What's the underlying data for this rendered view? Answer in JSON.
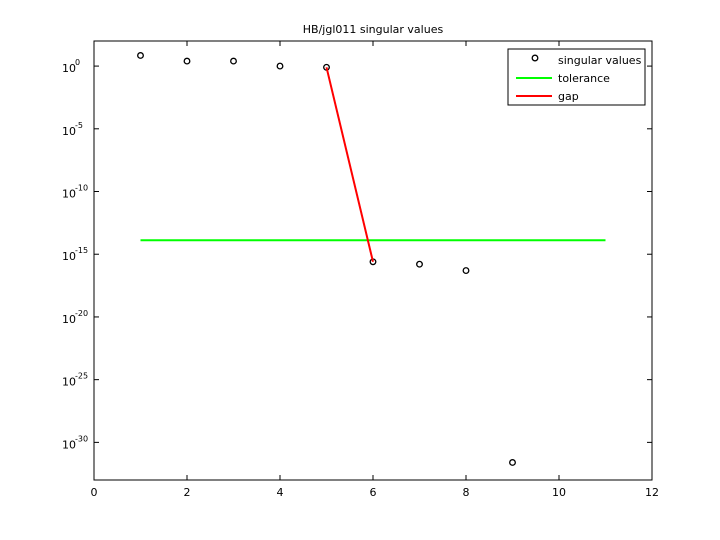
{
  "chart_data": {
    "type": "line",
    "title": "HB/jgl011 singular values",
    "xlim": [
      0,
      12
    ],
    "xticks": [
      0,
      2,
      4,
      6,
      8,
      10,
      12
    ],
    "ylim": [
      1e-33,
      100
    ],
    "log_y": true,
    "yticks": [
      {
        "value": 1,
        "label": "10",
        "exponent": "0"
      },
      {
        "value": 1e-05,
        "label": "10",
        "exponent": "-5"
      },
      {
        "value": 1e-10,
        "label": "10",
        "exponent": "-10"
      },
      {
        "value": 1e-15,
        "label": "10",
        "exponent": "-15"
      },
      {
        "value": 1e-20,
        "label": "10",
        "exponent": "-20"
      },
      {
        "value": 1e-25,
        "label": "10",
        "exponent": "-25"
      },
      {
        "value": 1e-30,
        "label": "10",
        "exponent": "-30"
      }
    ],
    "legend": "northeast",
    "series": [
      {
        "name": "singular values",
        "color": "#000000",
        "style": "markers",
        "x": [
          1,
          2,
          3,
          4,
          5,
          6,
          7,
          8,
          9
        ],
        "values": [
          7,
          2.5,
          2.5,
          1,
          0.8,
          2.5e-16,
          1.6e-16,
          5e-17,
          2.5e-32
        ]
      },
      {
        "name": "tolerance",
        "color": "#00ff00",
        "style": "line",
        "x": [
          1,
          11
        ],
        "values": [
          1.3e-14,
          1.3e-14
        ]
      },
      {
        "name": "gap",
        "color": "#ff0000",
        "style": "line",
        "x": [
          5,
          6
        ],
        "values": [
          0.8,
          2.5e-16
        ]
      }
    ]
  }
}
